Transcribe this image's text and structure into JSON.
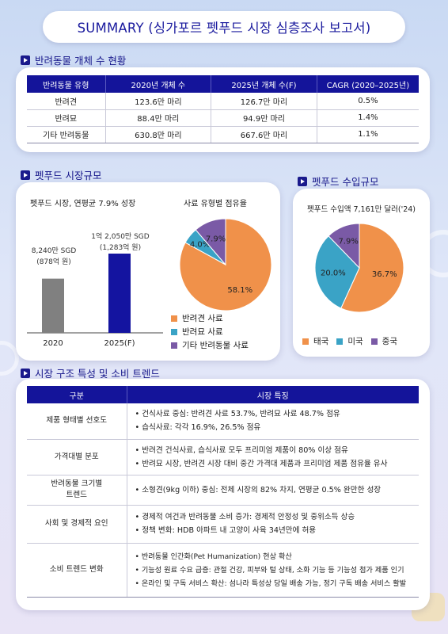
{
  "page_title": "SUMMARY (싱가포르 펫푸드 시장 심층조사 보고서)",
  "population": {
    "section_title": "반려동물 개체 수 현황",
    "columns": [
      "반려동물 유형",
      "2020년 개체 수",
      "2025년 개체 수(F)",
      "CAGR (2020–2025년)"
    ],
    "rows": [
      {
        "type": "반려견",
        "y2020": "123.6만 마리",
        "y2025": "126.7만 마리",
        "cagr": "0.5%"
      },
      {
        "type": "반려묘",
        "y2020": "88.4만 마리",
        "y2025": "94.9만 마리",
        "cagr": "1.4%"
      },
      {
        "type": "기타 반려동물",
        "y2020": "630.8만 마리",
        "y2025": "667.6만 마리",
        "cagr": "1.1%"
      }
    ]
  },
  "market_size": {
    "section_title": "펫푸드 시장규모",
    "bar_title": "펫푸드 시장, 연평균 7.9% 성장",
    "bars": [
      {
        "label": "2020",
        "line1": "8,240만 SGD",
        "line2": "(878억 원)"
      },
      {
        "label": "2025(F)",
        "line1": "1억 2,050만 SGD",
        "line2": "(1,283억 원)"
      }
    ],
    "pie_title": "사료 유형별 점유율",
    "legend": [
      "반려견 사료",
      "반려묘 사료",
      "기타 반려동물 사료"
    ],
    "colors": [
      "#f0914a",
      "#3aa3c6",
      "#7a5aa6"
    ]
  },
  "imports": {
    "section_title": "펫푸드 수입규모",
    "pie_title": "펫푸드 수입액 7,161만 달러('24)",
    "legend": [
      "태국",
      "미국",
      "중국"
    ],
    "colors": [
      "#f0914a",
      "#3aa3c6",
      "#7a5aa6"
    ]
  },
  "chart_data": [
    {
      "type": "bar",
      "title": "펫푸드 시장, 연평균 7.9% 성장",
      "categories": [
        "2020",
        "2025(F)"
      ],
      "values": [
        8240,
        12050
      ],
      "unit": "만 SGD",
      "colors": [
        "#808080",
        "#1414a0"
      ]
    },
    {
      "type": "pie",
      "title": "사료 유형별 점유율",
      "labels": [
        "반려견 사료",
        "반려묘 사료",
        "기타 반려동물 사료"
      ],
      "values": [
        58.1,
        4.0,
        7.9
      ],
      "value_labels": [
        "58.1%",
        "4.0%",
        "7.9%"
      ]
    },
    {
      "type": "pie",
      "title": "펫푸드 수입액 7,161만 달러('24)",
      "labels": [
        "태국",
        "미국",
        "중국"
      ],
      "values": [
        36.7,
        20.0,
        7.9
      ],
      "value_labels": [
        "36.7%",
        "20.0%",
        "7.9%"
      ]
    }
  ],
  "trends": {
    "section_title": "시장 구조 특성 및 소비 트렌드",
    "columns": [
      "구분",
      "시장 특징"
    ],
    "rows": [
      {
        "cat": "제품 형태별 선호도",
        "items": [
          "건식사료 중심: 반려견 사료 53.7%, 반려묘 사료 48.7% 점유",
          "습식사료: 각각 16.9%, 26.5% 점유"
        ]
      },
      {
        "cat": "가격대별 분포",
        "items": [
          "반려견 건식사료, 습식사료 모두 프리미엄 제품이 80% 이상 점유",
          "반려묘 시장, 반려견 시장 대비 중간 가격대 제품과 프리미엄 제품 점유율 유사"
        ]
      },
      {
        "cat": "반려동물 크기별\n트렌드",
        "items": [
          "소형견(9kg 이하) 중심: 전체 시장의 82% 차지, 연평균 0.5% 완만한 성장"
        ]
      },
      {
        "cat": "사회 및 경제적 요인",
        "items": [
          "경제적 여건과 반려동물 소비 증가: 경제적 안정성 및 중위소득 상승",
          "정책 변화: HDB 아파트 내 고양이 사육 34년만에 허용"
        ]
      },
      {
        "cat": "소비 트렌드 변화",
        "items": [
          "반려동물 인간화(Pet Humanization) 현상 확산",
          "기능성 원료 수요 급증: 관절 건강, 피부와 털 상태, 소화 기능 등 기능성 첨가 제품 인기",
          "온라인 및 구독 서비스 확산: 섬나라 특성상 당일 배송 가능, 정기 구독 배송 서비스 활발"
        ]
      }
    ]
  }
}
